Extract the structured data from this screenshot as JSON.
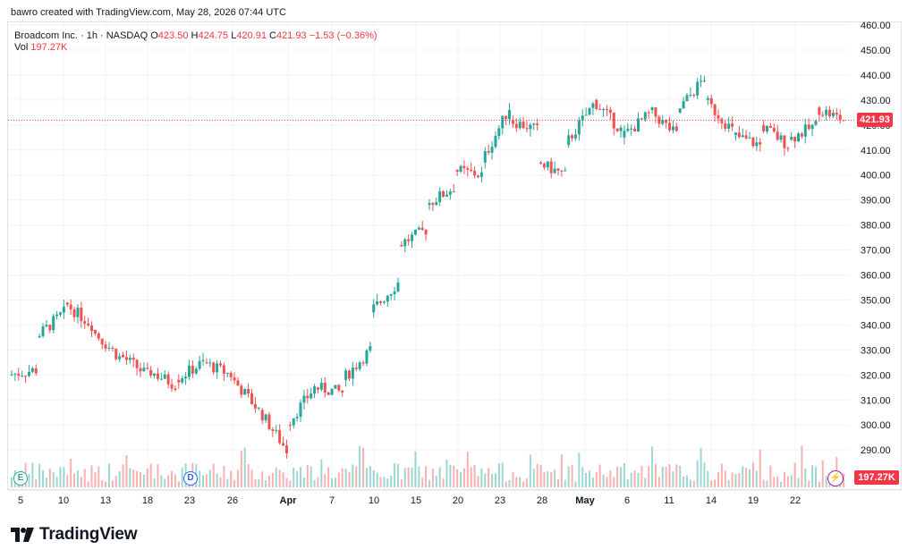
{
  "credit": "bawro created with TradingView.com, May 28, 2026 07:44 UTC",
  "legend": {
    "symbol": "Broadcom Inc. · 1h · NASDAQ",
    "open_label": "O",
    "open": "423.50",
    "high_label": "H",
    "high": "424.75",
    "low_label": "L",
    "low": "420.91",
    "close_label": "C",
    "close": "421.93",
    "change": "−1.53 (−0.36%)",
    "vol_label": "Vol",
    "vol": "197.27K"
  },
  "price_tag": "421.93",
  "vol_tag": "197.27K",
  "markers": {
    "earnings": "E",
    "dividend": "D"
  },
  "brand": "TradingView",
  "colors": {
    "up": "#26a69a",
    "down": "#ef5350",
    "grid": "#f0f3fa",
    "last": "#f23645"
  },
  "chart_data": {
    "type": "candlestick",
    "ylim": [
      285,
      460
    ],
    "y_ticks": [
      "460.00",
      "450.00",
      "440.00",
      "430.00",
      "420.00",
      "410.00",
      "400.00",
      "390.00",
      "380.00",
      "370.00",
      "360.00",
      "350.00",
      "340.00",
      "330.00",
      "320.00",
      "310.00",
      "300.00",
      "290.00"
    ],
    "x_labels": [
      "5",
      "10",
      "13",
      "18",
      "23",
      "26",
      "Apr",
      "7",
      "10",
      "15",
      "20",
      "23",
      "28",
      "May",
      "6",
      "11",
      "14",
      "19",
      "22"
    ],
    "last_price": 421.93,
    "daily_closes": [
      [
        320,
        322
      ],
      [
        335,
        345
      ],
      [
        349,
        340
      ],
      [
        338,
        327
      ],
      [
        328,
        320
      ],
      [
        322,
        316
      ],
      [
        318,
        325
      ],
      [
        325,
        320
      ],
      [
        319,
        306
      ],
      [
        306,
        290
      ],
      [
        300,
        315
      ],
      [
        315,
        313
      ],
      [
        318,
        330
      ],
      [
        345,
        357
      ],
      [
        372,
        378
      ],
      [
        388,
        395
      ],
      [
        402,
        400
      ],
      [
        405,
        427
      ],
      [
        422,
        418
      ],
      [
        405,
        400
      ],
      [
        412,
        428
      ],
      [
        430,
        418
      ],
      [
        415,
        424
      ],
      [
        426,
        416
      ],
      [
        425,
        439
      ],
      [
        430,
        418
      ],
      [
        416,
        412
      ],
      [
        420,
        412
      ],
      [
        414,
        420
      ],
      [
        427,
        421.93
      ]
    ]
  }
}
